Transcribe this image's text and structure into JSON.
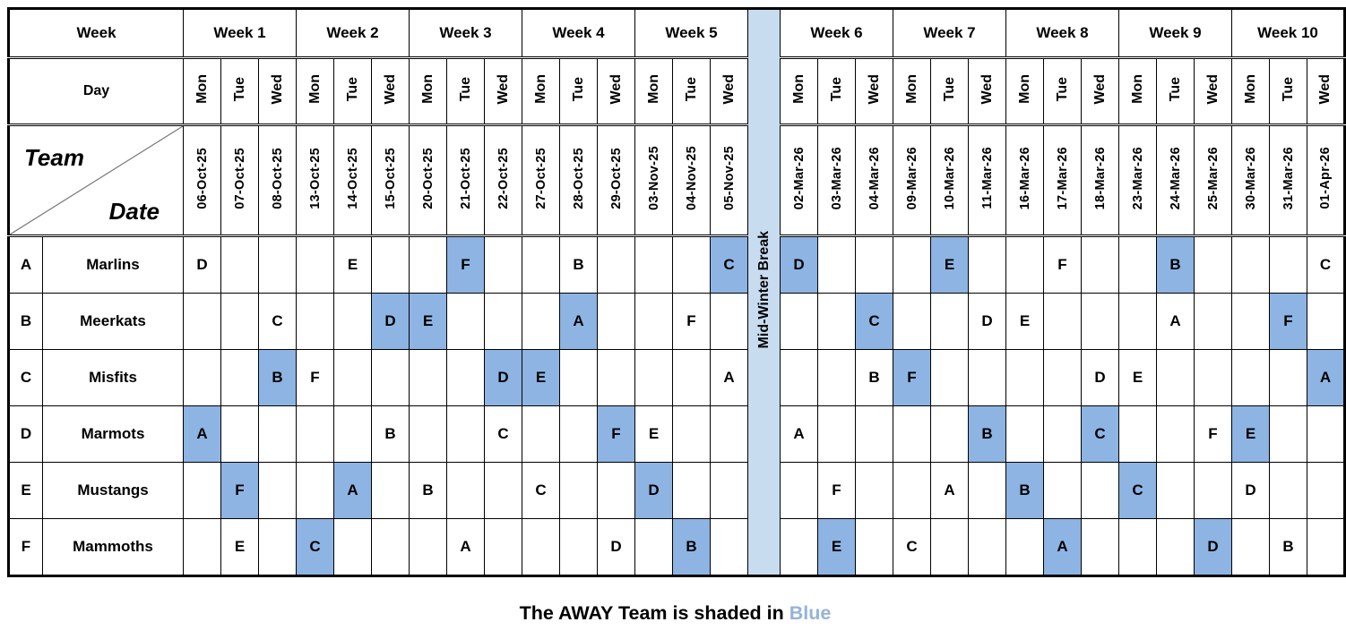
{
  "header": {
    "week_label": "Week",
    "day_label": "Day",
    "team_label": "Team",
    "date_label": "Date"
  },
  "day_names": [
    "Mon",
    "Tue",
    "Wed"
  ],
  "weeks": [
    {
      "label": "Week 1",
      "dates": [
        "06-Oct-25",
        "07-Oct-25",
        "08-Oct-25"
      ]
    },
    {
      "label": "Week 2",
      "dates": [
        "13-Oct-25",
        "14-Oct-25",
        "15-Oct-25"
      ]
    },
    {
      "label": "Week 3",
      "dates": [
        "20-Oct-25",
        "21-Oct-25",
        "22-Oct-25"
      ]
    },
    {
      "label": "Week 4",
      "dates": [
        "27-Oct-25",
        "28-Oct-25",
        "29-Oct-25"
      ]
    },
    {
      "label": "Week 5",
      "dates": [
        "03-Nov-25",
        "04-Nov-25",
        "05-Nov-25"
      ]
    },
    {
      "label": "Week 6",
      "dates": [
        "02-Mar-26",
        "03-Mar-26",
        "04-Mar-26"
      ]
    },
    {
      "label": "Week 7",
      "dates": [
        "09-Mar-26",
        "10-Mar-26",
        "11-Mar-26"
      ]
    },
    {
      "label": "Week 8",
      "dates": [
        "16-Mar-26",
        "17-Mar-26",
        "18-Mar-26"
      ]
    },
    {
      "label": "Week 9",
      "dates": [
        "23-Mar-26",
        "24-Mar-26",
        "25-Mar-26"
      ]
    },
    {
      "label": "Week 10",
      "dates": [
        "30-Mar-26",
        "31-Mar-26",
        "01-Apr-26"
      ]
    }
  ],
  "break": {
    "label": "Mid-Winter Break",
    "after_week": 5
  },
  "teams": [
    {
      "letter": "A",
      "name": "Marlins",
      "matches": [
        {
          "week": 1,
          "day": "Mon",
          "opp": "D",
          "away": false
        },
        {
          "week": 2,
          "day": "Tue",
          "opp": "E",
          "away": false
        },
        {
          "week": 3,
          "day": "Tue",
          "opp": "F",
          "away": true
        },
        {
          "week": 4,
          "day": "Tue",
          "opp": "B",
          "away": false
        },
        {
          "week": 5,
          "day": "Wed",
          "opp": "C",
          "away": true
        },
        {
          "week": 6,
          "day": "Mon",
          "opp": "D",
          "away": true
        },
        {
          "week": 7,
          "day": "Tue",
          "opp": "E",
          "away": true
        },
        {
          "week": 8,
          "day": "Tue",
          "opp": "F",
          "away": false
        },
        {
          "week": 9,
          "day": "Tue",
          "opp": "B",
          "away": true
        },
        {
          "week": 10,
          "day": "Wed",
          "opp": "C",
          "away": false
        }
      ]
    },
    {
      "letter": "B",
      "name": "Meerkats",
      "matches": [
        {
          "week": 1,
          "day": "Wed",
          "opp": "C",
          "away": false
        },
        {
          "week": 2,
          "day": "Wed",
          "opp": "D",
          "away": true
        },
        {
          "week": 3,
          "day": "Mon",
          "opp": "E",
          "away": true
        },
        {
          "week": 4,
          "day": "Tue",
          "opp": "A",
          "away": true
        },
        {
          "week": 5,
          "day": "Tue",
          "opp": "F",
          "away": false
        },
        {
          "week": 6,
          "day": "Wed",
          "opp": "C",
          "away": true
        },
        {
          "week": 7,
          "day": "Wed",
          "opp": "D",
          "away": false
        },
        {
          "week": 8,
          "day": "Mon",
          "opp": "E",
          "away": false
        },
        {
          "week": 9,
          "day": "Tue",
          "opp": "A",
          "away": false
        },
        {
          "week": 10,
          "day": "Tue",
          "opp": "F",
          "away": true
        }
      ]
    },
    {
      "letter": "C",
      "name": "Misfits",
      "matches": [
        {
          "week": 1,
          "day": "Wed",
          "opp": "B",
          "away": true
        },
        {
          "week": 2,
          "day": "Mon",
          "opp": "F",
          "away": false
        },
        {
          "week": 3,
          "day": "Wed",
          "opp": "D",
          "away": true
        },
        {
          "week": 4,
          "day": "Mon",
          "opp": "E",
          "away": true
        },
        {
          "week": 5,
          "day": "Wed",
          "opp": "A",
          "away": false
        },
        {
          "week": 6,
          "day": "Wed",
          "opp": "B",
          "away": false
        },
        {
          "week": 7,
          "day": "Mon",
          "opp": "F",
          "away": true
        },
        {
          "week": 8,
          "day": "Wed",
          "opp": "D",
          "away": false
        },
        {
          "week": 9,
          "day": "Mon",
          "opp": "E",
          "away": false
        },
        {
          "week": 10,
          "day": "Wed",
          "opp": "A",
          "away": true
        }
      ]
    },
    {
      "letter": "D",
      "name": "Marmots",
      "matches": [
        {
          "week": 1,
          "day": "Mon",
          "opp": "A",
          "away": true
        },
        {
          "week": 2,
          "day": "Wed",
          "opp": "B",
          "away": false
        },
        {
          "week": 3,
          "day": "Wed",
          "opp": "C",
          "away": false
        },
        {
          "week": 4,
          "day": "Wed",
          "opp": "F",
          "away": true
        },
        {
          "week": 5,
          "day": "Mon",
          "opp": "E",
          "away": false
        },
        {
          "week": 6,
          "day": "Mon",
          "opp": "A",
          "away": false
        },
        {
          "week": 7,
          "day": "Wed",
          "opp": "B",
          "away": true
        },
        {
          "week": 8,
          "day": "Wed",
          "opp": "C",
          "away": true
        },
        {
          "week": 9,
          "day": "Wed",
          "opp": "F",
          "away": false
        },
        {
          "week": 10,
          "day": "Mon",
          "opp": "E",
          "away": true
        }
      ]
    },
    {
      "letter": "E",
      "name": "Mustangs",
      "matches": [
        {
          "week": 1,
          "day": "Tue",
          "opp": "F",
          "away": true
        },
        {
          "week": 2,
          "day": "Tue",
          "opp": "A",
          "away": true
        },
        {
          "week": 3,
          "day": "Mon",
          "opp": "B",
          "away": false
        },
        {
          "week": 4,
          "day": "Mon",
          "opp": "C",
          "away": false
        },
        {
          "week": 5,
          "day": "Mon",
          "opp": "D",
          "away": true
        },
        {
          "week": 6,
          "day": "Tue",
          "opp": "F",
          "away": false
        },
        {
          "week": 7,
          "day": "Tue",
          "opp": "A",
          "away": false
        },
        {
          "week": 8,
          "day": "Mon",
          "opp": "B",
          "away": true
        },
        {
          "week": 9,
          "day": "Mon",
          "opp": "C",
          "away": true
        },
        {
          "week": 10,
          "day": "Mon",
          "opp": "D",
          "away": false
        }
      ]
    },
    {
      "letter": "F",
      "name": "Mammoths",
      "matches": [
        {
          "week": 1,
          "day": "Tue",
          "opp": "E",
          "away": false
        },
        {
          "week": 2,
          "day": "Mon",
          "opp": "C",
          "away": true
        },
        {
          "week": 3,
          "day": "Tue",
          "opp": "A",
          "away": false
        },
        {
          "week": 4,
          "day": "Wed",
          "opp": "D",
          "away": false
        },
        {
          "week": 5,
          "day": "Tue",
          "opp": "B",
          "away": true
        },
        {
          "week": 6,
          "day": "Tue",
          "opp": "E",
          "away": true
        },
        {
          "week": 7,
          "day": "Mon",
          "opp": "C",
          "away": false
        },
        {
          "week": 8,
          "day": "Tue",
          "opp": "A",
          "away": true
        },
        {
          "week": 9,
          "day": "Wed",
          "opp": "D",
          "away": true
        },
        {
          "week": 10,
          "day": "Tue",
          "opp": "B",
          "away": false
        }
      ]
    }
  ],
  "legend": {
    "prefix": "The AWAY Team is shaded in",
    "highlight": "Blue"
  },
  "colors": {
    "away_fill": "#8DB4E2",
    "break_bg": "#C8DCF0",
    "legend_blue": "#95B3D7",
    "border": "#000000"
  }
}
